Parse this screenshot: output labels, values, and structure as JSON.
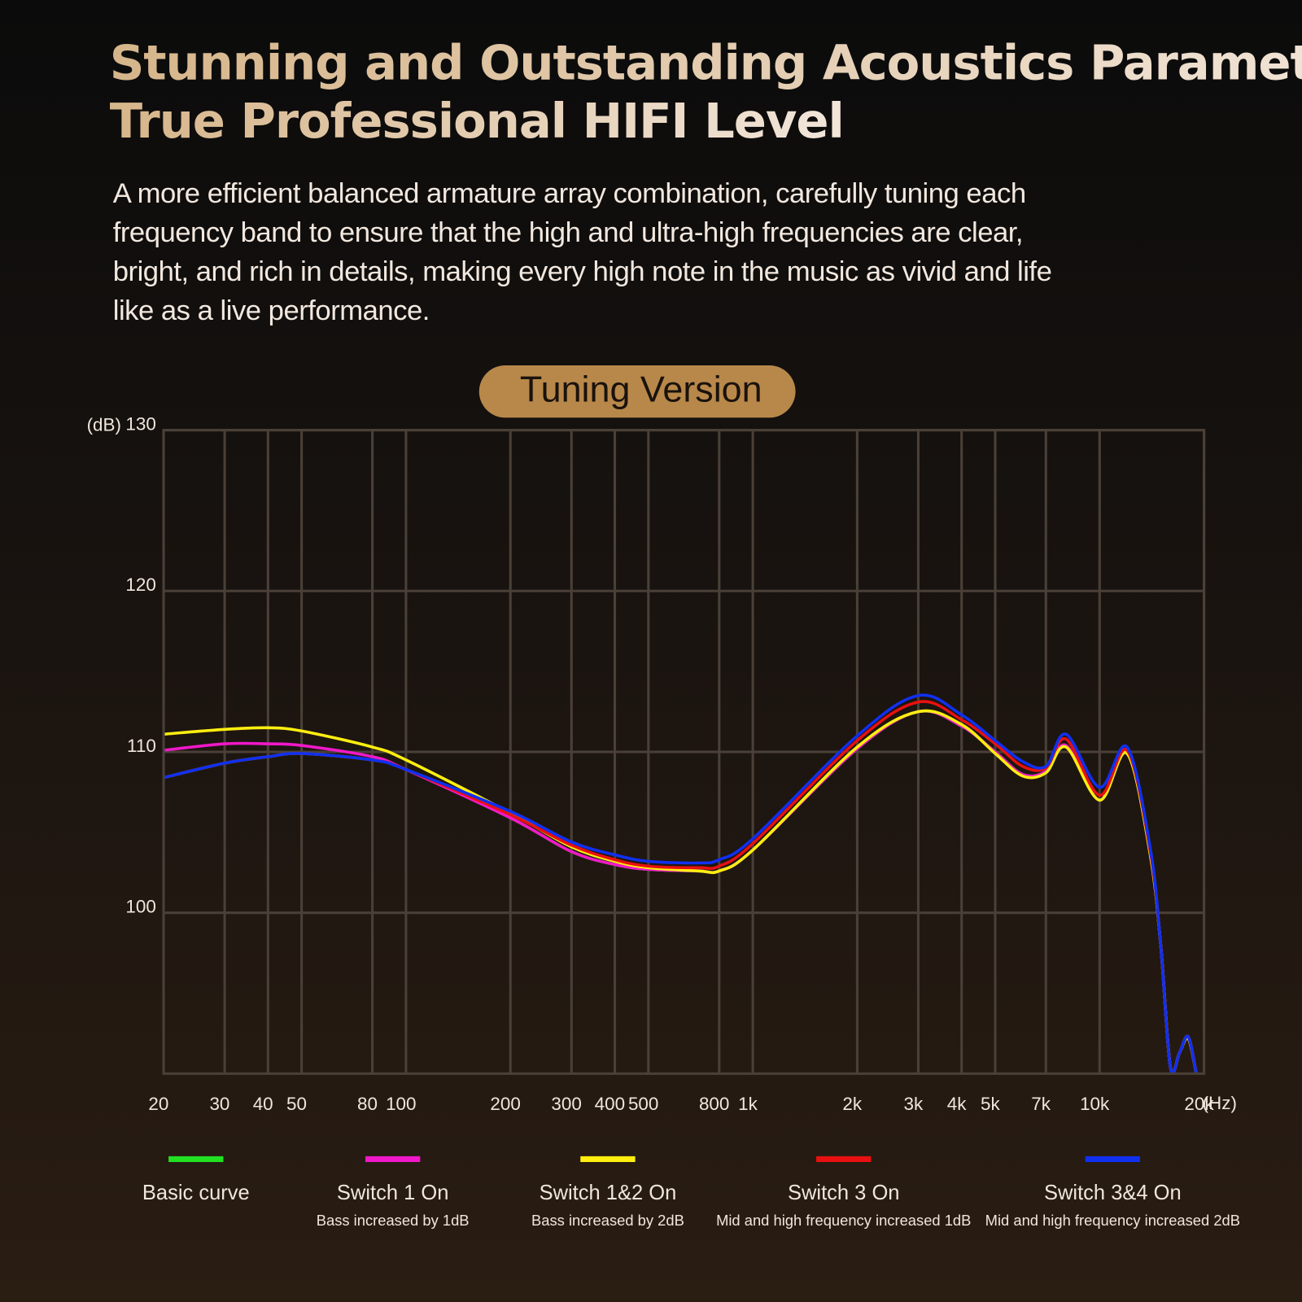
{
  "header": {
    "title": [
      "Stunning and Outstanding Acoustics Parameters",
      "True Professional HIFI Level"
    ],
    "description": [
      "A more efficient balanced armature array combination, carefully tuning each",
      "frequency band to ensure that the high and ultra-high frequencies are clear,",
      "bright, and rich in details, making every high note in the music as vivid and life",
      "like as a live performance."
    ]
  },
  "chart_data": {
    "type": "line",
    "title": "Tuning Version",
    "y_label": "(dB)",
    "x_label": "(Hz)",
    "log_x": true,
    "grid": true,
    "xlim": [
      20,
      20000
    ],
    "ylim": [
      90,
      130
    ],
    "yticks": [
      100,
      110,
      120,
      130
    ],
    "xticks": [
      20,
      30,
      40,
      50,
      80,
      100,
      200,
      300,
      400,
      500,
      800,
      {
        "value": 1000,
        "label": "1k"
      },
      {
        "value": 2000,
        "label": "2k"
      },
      {
        "value": 3000,
        "label": "3k"
      },
      {
        "value": 4000,
        "label": "4k"
      },
      {
        "value": 5000,
        "label": "5k"
      },
      {
        "value": 7000,
        "label": "7k"
      },
      {
        "value": 10000,
        "label": "10k"
      },
      {
        "value": 20000,
        "label": "20k"
      }
    ],
    "x": [
      20,
      30,
      40,
      50,
      80,
      100,
      200,
      300,
      400,
      500,
      700,
      800,
      1000,
      2000,
      3000,
      4000,
      5000,
      6000,
      7000,
      8000,
      10000,
      12000,
      14000,
      15000,
      16000,
      17000,
      18000,
      19000
    ],
    "series": [
      {
        "name": "Basic curve",
        "color": "#22e022",
        "values": [
          108.4,
          109.3,
          109.7,
          109.9,
          109.5,
          108.9,
          105.9,
          103.8,
          103.0,
          102.7,
          102.6,
          102.6,
          103.9,
          110.2,
          112.5,
          111.6,
          110.0,
          108.6,
          108.8,
          110.4,
          107.0,
          110.0,
          103.6,
          98,
          90.4,
          91.3,
          92.3,
          90
        ]
      },
      {
        "name": "Switch 1 On",
        "description": "Bass increased by 1dB",
        "color": "#f018c8",
        "values": [
          110.1,
          110.5,
          110.5,
          110.4,
          109.7,
          108.9,
          105.9,
          103.8,
          103.0,
          102.7,
          102.6,
          102.6,
          103.9,
          110.2,
          112.5,
          111.6,
          110.0,
          108.6,
          108.8,
          110.4,
          107.0,
          110.0,
          103.6,
          98,
          90.4,
          91.3,
          92.3,
          90
        ]
      },
      {
        "name": "Switch 1&2 On",
        "description": "Bass increased by 2dB",
        "color": "#ffee10",
        "values": [
          111.1,
          111.4,
          111.5,
          111.3,
          110.3,
          109.5,
          106.2,
          104.1,
          103.2,
          102.8,
          102.6,
          102.6,
          103.9,
          110.3,
          112.5,
          111.7,
          109.9,
          108.5,
          108.7,
          110.3,
          107.0,
          109.9,
          103.6,
          98,
          90.4,
          91.3,
          92.2,
          90
        ]
      },
      {
        "name": "Switch 3 On",
        "description": "Mid and high frequency increased 1dB",
        "color": "#e81010",
        "values": [
          108.4,
          109.3,
          109.7,
          109.9,
          109.5,
          108.9,
          106.1,
          104.2,
          103.3,
          102.9,
          102.8,
          102.9,
          104.3,
          110.7,
          113.1,
          112.0,
          110.5,
          109.1,
          109.0,
          110.8,
          107.3,
          110.1,
          103.8,
          98,
          90.4,
          91.3,
          92.3,
          90
        ]
      },
      {
        "name": "Switch 3&4 On",
        "description": "Mid and high frequency increased 2dB",
        "color": "#1030f0",
        "values": [
          108.4,
          109.3,
          109.7,
          109.9,
          109.5,
          108.9,
          106.3,
          104.4,
          103.6,
          103.2,
          103.1,
          103.3,
          104.6,
          111.0,
          113.5,
          112.3,
          110.7,
          109.4,
          109.1,
          111.1,
          107.8,
          110.3,
          104.0,
          98,
          90.4,
          91.3,
          92.3,
          90
        ]
      }
    ]
  }
}
